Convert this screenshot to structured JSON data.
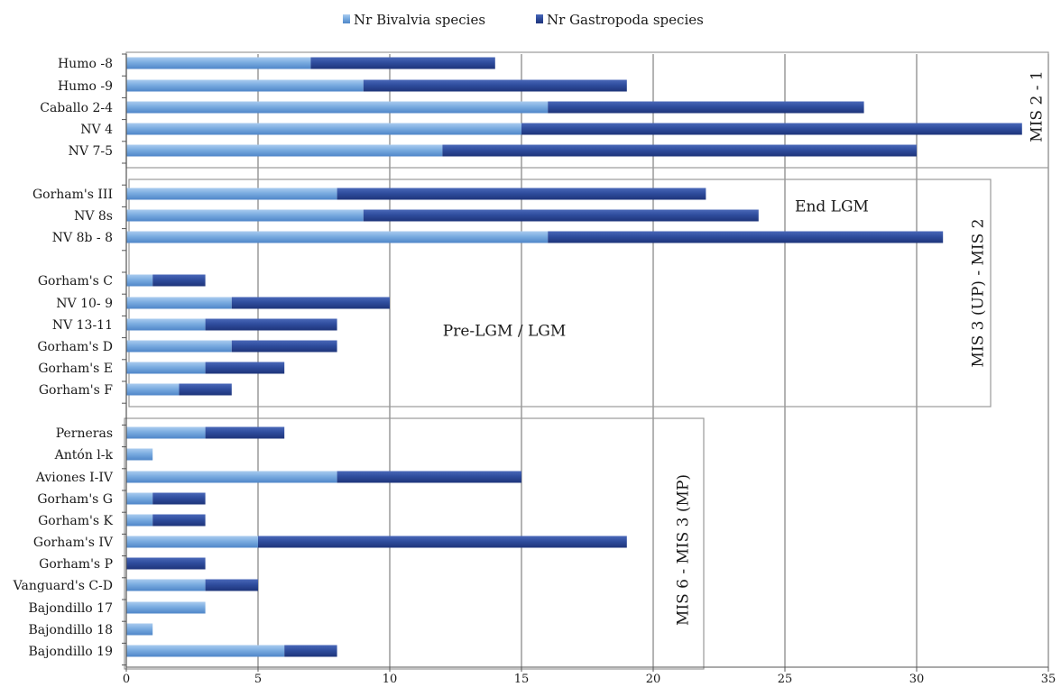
{
  "chart_data": {
    "type": "bar",
    "stacked": true,
    "orientation": "horizontal",
    "legend_position": "top-center",
    "grid": true,
    "xlim": [
      0,
      35
    ],
    "x_ticks": [
      0,
      5,
      10,
      15,
      20,
      25,
      30,
      35
    ],
    "categories": [
      "Humo -8",
      "Humo -9",
      "Caballo 2-4",
      "NV 4",
      "NV 7-5",
      "Gorham's III",
      "NV 8s",
      "NV 8b - 8",
      "Gorham's C",
      "NV 10- 9",
      "NV 13-11",
      "Gorham's D",
      "Gorham's E",
      "Gorham's F",
      "Perneras",
      "Antón l-k",
      "Aviones I-IV",
      "Gorham's G",
      "Gorham's K",
      "Gorham's IV",
      "Gorham's P",
      "Vanguard's C-D",
      "Bajondillo 17",
      "Bajondillo 18",
      "Bajondillo 19"
    ],
    "series": [
      {
        "name": "Nr Bivalvia species",
        "color": "#7aace0",
        "values": [
          7,
          9,
          16,
          15,
          12,
          8,
          9,
          16,
          1,
          4,
          3,
          4,
          3,
          2,
          3,
          1,
          8,
          1,
          1,
          5,
          0,
          3,
          3,
          1,
          6
        ]
      },
      {
        "name": "Nr Gastropoda species",
        "color": "#2f4d9e",
        "values": [
          7,
          10,
          12,
          19,
          18,
          14,
          15,
          15,
          2,
          6,
          5,
          4,
          3,
          2,
          3,
          0,
          7,
          2,
          2,
          14,
          3,
          2,
          0,
          0,
          2
        ]
      }
    ],
    "annotations": [
      {
        "label": "MIS 2 - 1",
        "orientation": "vertical"
      },
      {
        "label": "End LGM",
        "orientation": "horizontal"
      },
      {
        "label": "Pre-LGM  / LGM",
        "orientation": "horizontal"
      },
      {
        "label": "MIS 3 (UP) - MIS 2",
        "orientation": "vertical"
      },
      {
        "label": "MIS 6 - MIS 3 (MP)",
        "orientation": "vertical"
      }
    ]
  }
}
